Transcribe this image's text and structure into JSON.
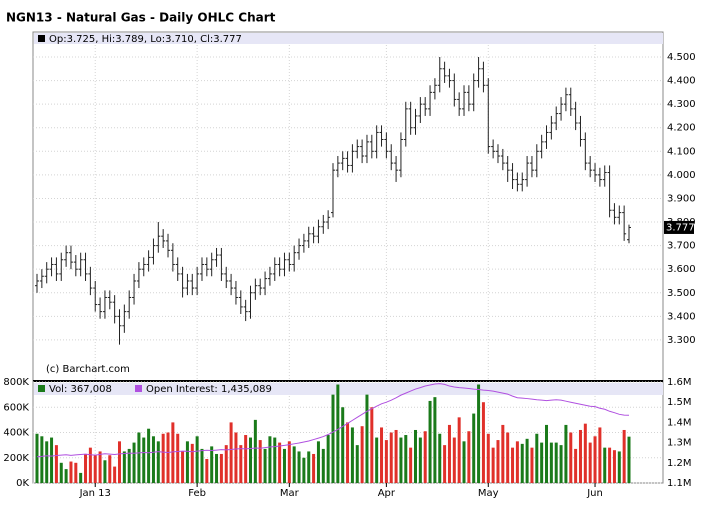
{
  "chart_data": [
    {
      "type": "ohlc",
      "title": "NGN13 - Natural Gas - Daily OHLC Chart",
      "legend": "Op:3.725, Hi:3.789, Lo:3.710, Cl:3.777",
      "source": "(c) Barchart.com",
      "color": "#222222",
      "open": [
        3.53,
        3.55,
        3.57,
        3.6,
        3.62,
        3.58,
        3.64,
        3.67,
        3.63,
        3.6,
        3.64,
        3.58,
        3.52,
        3.45,
        3.42,
        3.48,
        3.46,
        3.4,
        3.36,
        3.42,
        3.48,
        3.55,
        3.6,
        3.62,
        3.65,
        3.7,
        3.74,
        3.72,
        3.68,
        3.62,
        3.58,
        3.52,
        3.55,
        3.52,
        3.58,
        3.62,
        3.6,
        3.64,
        3.66,
        3.58,
        3.55,
        3.52,
        3.48,
        3.44,
        3.42,
        3.5,
        3.53,
        3.52,
        3.56,
        3.58,
        3.62,
        3.6,
        3.64,
        3.62,
        3.67,
        3.7,
        3.72,
        3.75,
        3.74,
        3.78,
        3.8,
        3.84,
        4.02,
        4.05,
        4.07,
        4.04,
        4.1,
        4.12,
        4.08,
        4.14,
        4.1,
        4.18,
        4.15,
        4.1,
        4.05,
        4.02,
        4.15,
        4.28,
        4.2,
        4.25,
        4.3,
        4.28,
        4.35,
        4.38,
        4.45,
        4.42,
        4.4,
        4.32,
        4.28,
        4.35,
        4.3,
        4.4,
        4.45,
        4.38,
        4.12,
        4.1,
        4.08,
        4.05,
        4.02,
        3.98,
        3.96,
        3.98,
        4.05,
        4.02,
        4.1,
        4.14,
        4.18,
        4.22,
        4.26,
        4.3,
        4.34,
        4.28,
        4.22,
        4.15,
        4.05,
        4.02,
        4.0,
        3.98,
        4.01,
        3.85,
        3.82,
        3.84,
        3.725
      ],
      "high": [
        3.58,
        3.6,
        3.63,
        3.65,
        3.65,
        3.67,
        3.7,
        3.7,
        3.66,
        3.67,
        3.67,
        3.61,
        3.55,
        3.48,
        3.51,
        3.51,
        3.49,
        3.43,
        3.45,
        3.51,
        3.58,
        3.63,
        3.65,
        3.68,
        3.73,
        3.8,
        3.77,
        3.75,
        3.71,
        3.65,
        3.61,
        3.58,
        3.58,
        3.61,
        3.65,
        3.65,
        3.67,
        3.69,
        3.69,
        3.61,
        3.58,
        3.55,
        3.51,
        3.47,
        3.53,
        3.56,
        3.56,
        3.59,
        3.61,
        3.65,
        3.65,
        3.67,
        3.67,
        3.7,
        3.73,
        3.75,
        3.78,
        3.78,
        3.81,
        3.83,
        3.85,
        4.05,
        4.08,
        4.1,
        4.1,
        4.13,
        4.15,
        4.15,
        4.17,
        4.17,
        4.21,
        4.21,
        4.18,
        4.13,
        4.08,
        4.18,
        4.31,
        4.31,
        4.28,
        4.33,
        4.33,
        4.38,
        4.41,
        4.5,
        4.48,
        4.45,
        4.43,
        4.35,
        4.38,
        4.38,
        4.43,
        4.5,
        4.48,
        4.41,
        4.15,
        4.13,
        4.11,
        4.08,
        4.05,
        4.01,
        4.01,
        4.08,
        4.08,
        4.13,
        4.17,
        4.21,
        4.25,
        4.29,
        4.33,
        4.37,
        4.37,
        4.31,
        4.25,
        4.18,
        4.08,
        4.05,
        4.03,
        4.04,
        4.04,
        3.88,
        3.87,
        3.87,
        3.789
      ],
      "low": [
        3.5,
        3.52,
        3.54,
        3.57,
        3.55,
        3.55,
        3.61,
        3.6,
        3.57,
        3.57,
        3.55,
        3.49,
        3.42,
        3.39,
        3.39,
        3.43,
        3.37,
        3.28,
        3.33,
        3.39,
        3.45,
        3.52,
        3.57,
        3.59,
        3.62,
        3.67,
        3.69,
        3.65,
        3.59,
        3.55,
        3.48,
        3.49,
        3.49,
        3.49,
        3.55,
        3.57,
        3.57,
        3.61,
        3.55,
        3.52,
        3.49,
        3.45,
        3.41,
        3.38,
        3.39,
        3.47,
        3.49,
        3.49,
        3.53,
        3.55,
        3.57,
        3.57,
        3.59,
        3.59,
        3.64,
        3.67,
        3.69,
        3.71,
        3.71,
        3.75,
        3.77,
        3.82,
        3.99,
        4.02,
        4.01,
        4.01,
        4.07,
        4.05,
        4.05,
        4.07,
        4.07,
        4.12,
        4.07,
        4.02,
        3.97,
        3.99,
        4.12,
        4.17,
        4.17,
        4.22,
        4.25,
        4.25,
        4.32,
        4.35,
        4.39,
        4.37,
        4.29,
        4.25,
        4.25,
        4.27,
        4.27,
        4.37,
        4.35,
        4.09,
        4.07,
        4.05,
        4.02,
        3.97,
        3.94,
        3.93,
        3.93,
        3.95,
        3.99,
        3.99,
        4.07,
        4.11,
        4.15,
        4.19,
        4.23,
        4.27,
        4.25,
        4.19,
        4.12,
        4.02,
        3.99,
        3.97,
        3.95,
        3.95,
        3.82,
        3.79,
        3.79,
        3.72,
        3.71
      ],
      "close": [
        3.55,
        3.57,
        3.6,
        3.62,
        3.58,
        3.64,
        3.67,
        3.63,
        3.6,
        3.64,
        3.58,
        3.52,
        3.45,
        3.42,
        3.48,
        3.46,
        3.4,
        3.36,
        3.42,
        3.48,
        3.55,
        3.6,
        3.62,
        3.65,
        3.7,
        3.74,
        3.72,
        3.68,
        3.62,
        3.58,
        3.52,
        3.55,
        3.52,
        3.58,
        3.62,
        3.6,
        3.64,
        3.66,
        3.58,
        3.55,
        3.52,
        3.48,
        3.44,
        3.42,
        3.5,
        3.53,
        3.52,
        3.56,
        3.58,
        3.62,
        3.6,
        3.64,
        3.62,
        3.67,
        3.7,
        3.72,
        3.75,
        3.74,
        3.78,
        3.8,
        3.82,
        4.02,
        4.05,
        4.07,
        4.04,
        4.1,
        4.12,
        4.08,
        4.14,
        4.1,
        4.18,
        4.15,
        4.1,
        4.05,
        4.02,
        4.15,
        4.28,
        4.2,
        4.25,
        4.3,
        4.28,
        4.35,
        4.38,
        4.45,
        4.42,
        4.4,
        4.32,
        4.28,
        4.35,
        4.3,
        4.4,
        4.45,
        4.38,
        4.12,
        4.1,
        4.08,
        4.05,
        4.02,
        3.98,
        3.96,
        3.98,
        4.05,
        4.02,
        4.1,
        4.14,
        4.18,
        4.22,
        4.26,
        4.3,
        4.34,
        4.28,
        4.22,
        4.15,
        4.05,
        4.02,
        4.0,
        3.98,
        4.01,
        3.85,
        3.82,
        3.84,
        3.75,
        3.777
      ],
      "ylim": [
        3.13,
        4.606
      ],
      "yticks": [
        {
          "value": 3.3,
          "label": "3.300"
        },
        {
          "value": 3.4,
          "label": "3.400"
        },
        {
          "value": 3.5,
          "label": "3.500"
        },
        {
          "value": 3.6,
          "label": "3.600"
        },
        {
          "value": 3.7,
          "label": "3.700"
        },
        {
          "value": 3.8,
          "label": "3.800"
        },
        {
          "value": 3.9,
          "label": "3.900"
        },
        {
          "value": 4.0,
          "label": "4.000"
        },
        {
          "value": 4.1,
          "label": "4.100"
        },
        {
          "value": 4.2,
          "label": "4.200"
        },
        {
          "value": 4.3,
          "label": "4.300"
        },
        {
          "value": 4.4,
          "label": "4.400"
        },
        {
          "value": 4.5,
          "label": "4.500"
        }
      ],
      "last": {
        "value": 3.777,
        "label": "3.777"
      },
      "grid": true
    },
    {
      "type": "bar",
      "categories": [
        null,
        null,
        null,
        null,
        null,
        null,
        null,
        null,
        null,
        null,
        null,
        null,
        "Jan 13",
        null,
        null,
        null,
        null,
        null,
        null,
        null,
        null,
        null,
        null,
        null,
        null,
        null,
        null,
        null,
        null,
        null,
        null,
        null,
        null,
        "Feb",
        null,
        null,
        null,
        null,
        null,
        null,
        null,
        null,
        null,
        null,
        null,
        null,
        null,
        null,
        null,
        null,
        null,
        null,
        "Mar",
        null,
        null,
        null,
        null,
        null,
        null,
        null,
        null,
        null,
        null,
        null,
        null,
        null,
        null,
        null,
        null,
        null,
        null,
        null,
        "Apr",
        null,
        null,
        null,
        null,
        null,
        null,
        null,
        null,
        null,
        null,
        null,
        null,
        null,
        null,
        null,
        null,
        null,
        null,
        null,
        null,
        "May",
        null,
        null,
        null,
        null,
        null,
        null,
        null,
        null,
        null,
        null,
        null,
        null,
        null,
        null,
        null,
        null,
        null,
        null,
        null,
        null,
        null,
        "Jun",
        null,
        null,
        null,
        null,
        null,
        null,
        null
      ],
      "series": [
        {
          "name": "Vol: 367,008",
          "color": "#1a7a1a",
          "down_color": "#e0302a",
          "values": [
            390000,
            370000,
            330000,
            360000,
            300000,
            160000,
            110000,
            170000,
            160000,
            80000,
            230000,
            280000,
            220000,
            250000,
            180000,
            220000,
            130000,
            330000,
            250000,
            270000,
            320000,
            400000,
            360000,
            430000,
            370000,
            330000,
            390000,
            400000,
            480000,
            390000,
            250000,
            330000,
            310000,
            370000,
            270000,
            190000,
            290000,
            230000,
            230000,
            300000,
            480000,
            400000,
            300000,
            380000,
            360000,
            500000,
            340000,
            270000,
            370000,
            360000,
            320000,
            270000,
            330000,
            290000,
            250000,
            200000,
            250000,
            230000,
            330000,
            270000,
            380000,
            700000,
            780000,
            600000,
            480000,
            440000,
            300000,
            450000,
            700000,
            600000,
            360000,
            440000,
            340000,
            400000,
            420000,
            360000,
            380000,
            280000,
            420000,
            360000,
            410000,
            650000,
            680000,
            390000,
            300000,
            460000,
            360000,
            520000,
            330000,
            410000,
            550000,
            780000,
            640000,
            390000,
            280000,
            340000,
            460000,
            400000,
            280000,
            330000,
            310000,
            350000,
            280000,
            390000,
            320000,
            460000,
            320000,
            320000,
            300000,
            460000,
            400000,
            270000,
            420000,
            470000,
            320000,
            370000,
            440000,
            280000,
            280000,
            260000,
            250000,
            420000,
            367008
          ]
        },
        {
          "name": "Open Interest: 1,435,089",
          "type": "line",
          "axis": "y2",
          "color": "#b050e0",
          "values": [
            1230000,
            1232000,
            1235000,
            1233000,
            1236000,
            1238000,
            1240000,
            1237000,
            1239000,
            1241000,
            1243000,
            1240000,
            1238000,
            1242000,
            1245000,
            1243000,
            1241000,
            1244000,
            1246000,
            1248000,
            1247000,
            1249000,
            1251000,
            1250000,
            1252000,
            1255000,
            1253000,
            1251000,
            1254000,
            1256000,
            1258000,
            1257000,
            1255000,
            1258000,
            1260000,
            1262000,
            1261000,
            1263000,
            1265000,
            1264000,
            1266000,
            1268000,
            1270000,
            1269000,
            1271000,
            1273000,
            1272000,
            1275000,
            1278000,
            1280000,
            1283000,
            1286000,
            1290000,
            1294000,
            1298000,
            1303000,
            1308000,
            1315000,
            1322000,
            1330000,
            1340000,
            1352000,
            1365000,
            1380000,
            1395000,
            1410000,
            1425000,
            1440000,
            1455000,
            1468000,
            1480000,
            1492000,
            1500000,
            1510000,
            1522000,
            1535000,
            1545000,
            1555000,
            1565000,
            1572000,
            1580000,
            1585000,
            1590000,
            1592000,
            1588000,
            1580000,
            1575000,
            1572000,
            1570000,
            1568000,
            1565000,
            1563000,
            1560000,
            1558000,
            1555000,
            1550000,
            1545000,
            1540000,
            1530000,
            1522000,
            1520000,
            1518000,
            1515000,
            1512000,
            1510000,
            1508000,
            1510000,
            1512000,
            1510000,
            1505000,
            1500000,
            1495000,
            1490000,
            1485000,
            1480000,
            1478000,
            1470000,
            1465000,
            1455000,
            1448000,
            1440000,
            1436000,
            1435089
          ]
        }
      ],
      "ylim": [
        0,
        800000
      ],
      "yticks": [
        {
          "value": 0,
          "label": "0K"
        },
        {
          "value": 200000,
          "label": "200K"
        },
        {
          "value": 400000,
          "label": "400K"
        },
        {
          "value": 600000,
          "label": "600K"
        },
        {
          "value": 800000,
          "label": "800K"
        }
      ],
      "y2lim": [
        1100000,
        1600000
      ],
      "y2ticks": [
        {
          "value": 1100000,
          "label": "1.1M"
        },
        {
          "value": 1200000,
          "label": "1.2M"
        },
        {
          "value": 1300000,
          "label": "1.3M"
        },
        {
          "value": 1400000,
          "label": "1.4M"
        },
        {
          "value": 1500000,
          "label": "1.5M"
        },
        {
          "value": 1600000,
          "label": "1.6M"
        }
      ],
      "grid": true
    }
  ]
}
